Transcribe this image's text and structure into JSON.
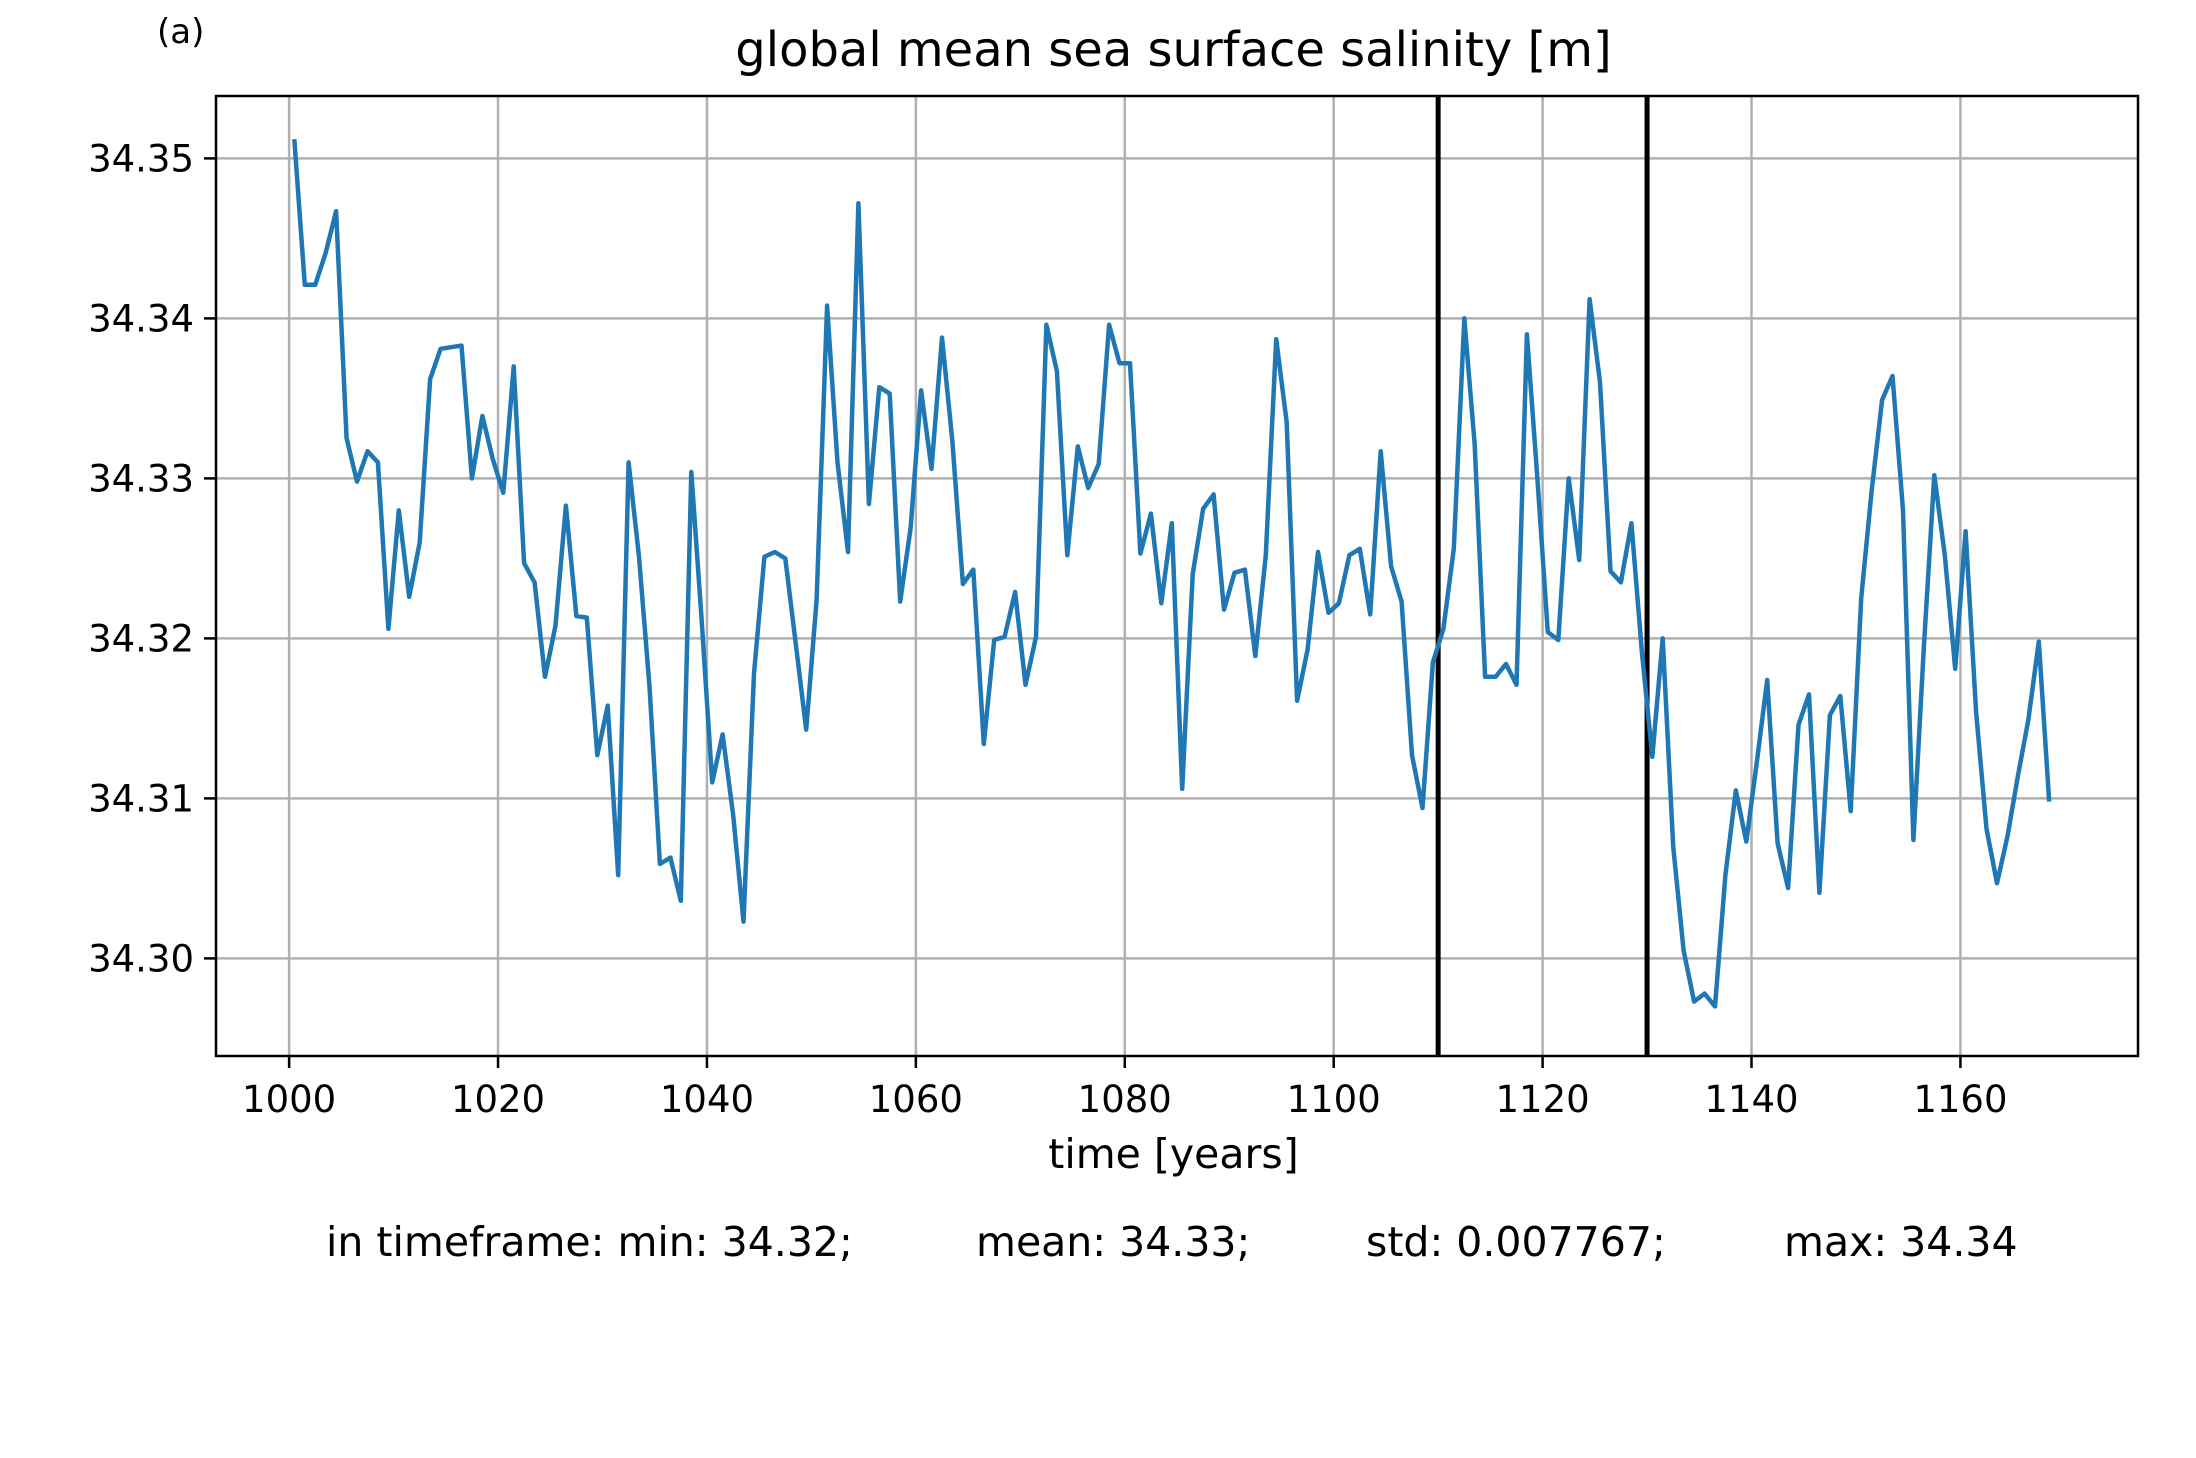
{
  "panel_label": "(a)",
  "stats": {
    "min": "in timeframe: min: 34.32;",
    "mean": "mean: 34.33;",
    "std": "std: 0.007767;",
    "max": "max: 34.34"
  },
  "chart_data": {
    "type": "line",
    "title": "global mean sea surface salinity [m]",
    "xlabel": "time [years]",
    "ylabel": "",
    "xlim": [
      993,
      1177
    ],
    "ylim": [
      34.2939,
      34.3539
    ],
    "x_ticks": [
      1000,
      1020,
      1040,
      1060,
      1080,
      1100,
      1120,
      1140,
      1160
    ],
    "y_ticks": [
      34.3,
      34.31,
      34.32,
      34.33,
      34.34,
      34.35
    ],
    "y_tick_labels": [
      "34.30",
      "34.31",
      "34.32",
      "34.33",
      "34.34",
      "34.35"
    ],
    "grid": true,
    "line_color": "#1f77b4",
    "vlines": [
      1110,
      1130
    ],
    "vline_color": "#000000",
    "x": [
      1000.5,
      1001.5,
      1002.5,
      1003.5,
      1004.5,
      1005.5,
      1006.5,
      1007.5,
      1008.5,
      1009.5,
      1010.5,
      1011.5,
      1012.5,
      1013.5,
      1014.5,
      1015.5,
      1016.5,
      1017.5,
      1018.5,
      1019.5,
      1020.5,
      1021.5,
      1022.5,
      1023.5,
      1024.5,
      1025.5,
      1026.5,
      1027.5,
      1028.5,
      1029.5,
      1030.5,
      1031.5,
      1032.5,
      1033.5,
      1034.5,
      1035.5,
      1036.5,
      1037.5,
      1038.5,
      1039.5,
      1040.5,
      1041.5,
      1042.5,
      1043.5,
      1044.5,
      1045.5,
      1046.5,
      1047.5,
      1048.5,
      1049.5,
      1050.5,
      1051.5,
      1052.5,
      1053.5,
      1054.5,
      1055.5,
      1056.5,
      1057.5,
      1058.5,
      1059.5,
      1060.5,
      1061.5,
      1062.5,
      1063.5,
      1064.5,
      1065.5,
      1066.5,
      1067.5,
      1068.5,
      1069.5,
      1070.5,
      1071.5,
      1072.5,
      1073.5,
      1074.5,
      1075.5,
      1076.5,
      1077.5,
      1078.5,
      1079.5,
      1080.5,
      1081.5,
      1082.5,
      1083.5,
      1084.5,
      1085.5,
      1086.5,
      1087.5,
      1088.5,
      1089.5,
      1090.5,
      1091.5,
      1092.5,
      1093.5,
      1094.5,
      1095.5,
      1096.5,
      1097.5,
      1098.5,
      1099.5,
      1100.5,
      1101.5,
      1102.5,
      1103.5,
      1104.5,
      1105.5,
      1106.5,
      1107.5,
      1108.5,
      1109.5,
      1110.5,
      1111.5,
      1112.5,
      1113.5,
      1114.5,
      1115.5,
      1116.5,
      1117.5,
      1118.5,
      1119.5,
      1120.5,
      1121.5,
      1122.5,
      1123.5,
      1124.5,
      1125.5,
      1126.5,
      1127.5,
      1128.5,
      1129.5,
      1130.5,
      1131.5,
      1132.5,
      1133.5,
      1134.5,
      1135.5,
      1136.5,
      1137.5,
      1138.5,
      1139.5,
      1140.5,
      1141.5,
      1142.5,
      1143.5,
      1144.5,
      1145.5,
      1146.5,
      1147.5,
      1148.5,
      1149.5,
      1150.5,
      1151.5,
      1152.5,
      1153.5,
      1154.5,
      1155.5,
      1156.5,
      1157.5,
      1158.5,
      1159.5,
      1160.5,
      1161.5,
      1162.5,
      1163.5,
      1164.5,
      1165.5,
      1166.5,
      1167.5,
      1168.5
    ],
    "y": [
      34.3512,
      34.3421,
      34.3421,
      34.3441,
      34.3467,
      34.3325,
      34.3298,
      34.3317,
      34.331,
      34.3206,
      34.328,
      34.3226,
      34.326,
      34.3362,
      34.3381,
      34.3382,
      34.3383,
      34.33,
      34.3339,
      34.3312,
      34.3291,
      34.337,
      34.3247,
      34.3235,
      34.3176,
      34.3208,
      34.3283,
      34.3214,
      34.3213,
      34.3127,
      34.3158,
      34.3052,
      34.331,
      34.3251,
      34.317,
      34.3059,
      34.3063,
      34.3036,
      34.3304,
      34.3211,
      34.311,
      34.314,
      34.309,
      34.3023,
      34.3178,
      34.3251,
      34.3254,
      34.325,
      34.3197,
      34.3143,
      34.3224,
      34.3408,
      34.331,
      34.3254,
      34.3472,
      34.3284,
      34.3357,
      34.3353,
      34.3223,
      34.3269,
      34.3355,
      34.3306,
      34.3388,
      34.3323,
      34.3234,
      34.3243,
      34.3134,
      34.3199,
      34.3201,
      34.3229,
      34.3171,
      34.3201,
      34.3396,
      34.3367,
      34.3252,
      34.332,
      34.3294,
      34.3309,
      34.3396,
      34.3372,
      34.3372,
      34.3253,
      34.3278,
      34.3222,
      34.3272,
      34.3106,
      34.324,
      34.3281,
      34.329,
      34.3218,
      34.3241,
      34.3243,
      34.3189,
      34.3252,
      34.3387,
      34.3335,
      34.3161,
      34.3193,
      34.3254,
      34.3216,
      34.3222,
      34.3252,
      34.3256,
      34.3215,
      34.3317,
      34.3245,
      34.3223,
      34.3127,
      34.3094,
      34.3185,
      34.3206,
      34.3256,
      34.34,
      34.3321,
      34.3176,
      34.3176,
      34.3184,
      34.3171,
      34.339,
      34.33,
      34.3204,
      34.3199,
      34.33,
      34.3249,
      34.3412,
      34.336,
      34.3242,
      34.3235,
      34.3272,
      34.3192,
      34.3126,
      34.32,
      34.307,
      34.3005,
      34.2973,
      34.2978,
      34.297,
      34.3052,
      34.3105,
      34.3073,
      34.3122,
      34.3174,
      34.3072,
      34.3044,
      34.3146,
      34.3165,
      34.3041,
      34.3152,
      34.3164,
      34.3092,
      34.3225,
      34.3292,
      34.3349,
      34.3364,
      34.328,
      34.3074,
      34.3195,
      34.3302,
      34.3252,
      34.3181,
      34.3267,
      34.3154,
      34.3081,
      34.3047,
      34.3076,
      34.3114,
      34.3149,
      34.3198,
      34.3098
    ]
  }
}
